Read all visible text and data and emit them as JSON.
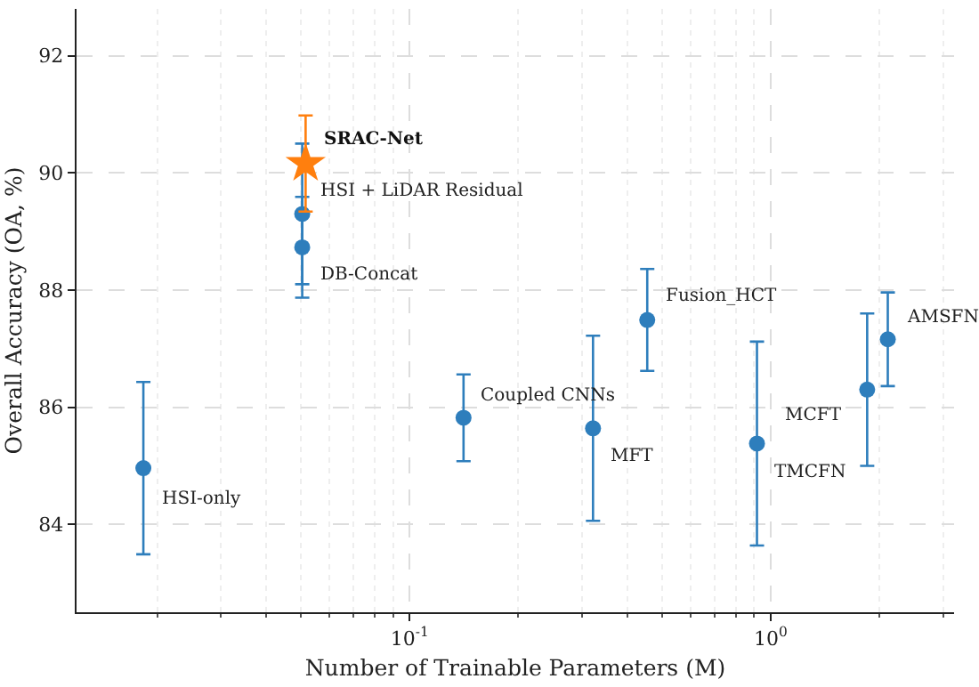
{
  "chart_data": {
    "type": "scatter",
    "xlabel": "Number of Trainable Parameters (M)",
    "ylabel": "Overall Accuracy (OA, %)",
    "log": "x",
    "grid": true,
    "xlim": [
      0.01195,
      3.22
    ],
    "ylim": [
      82.5,
      92.8
    ],
    "xticks": [
      {
        "value": 0.1,
        "label": "10$^{-1}$"
      },
      {
        "value": 1,
        "label": "10$^{0}$"
      }
    ],
    "yticks": [
      84,
      86,
      88,
      90,
      92
    ],
    "series": [
      {
        "color": "#2e7ebc",
        "marker": "circle",
        "x": [
          0.0183,
          0.0504,
          0.0504,
          0.141,
          0.322,
          0.455,
          0.916,
          1.85,
          2.11
        ],
        "values": [
          84.96,
          89.3,
          88.73,
          85.82,
          85.64,
          87.49,
          85.38,
          86.3,
          87.16
        ],
        "errors": [
          1.47,
          1.2,
          0.86,
          0.74,
          1.58,
          0.87,
          1.74,
          1.3,
          0.8
        ]
      },
      {
        "name": "SRAC-Net",
        "color": "#ff7f0e",
        "marker": "star",
        "x": [
          0.0515
        ],
        "values": [
          90.16
        ],
        "errors": [
          0.82
        ]
      }
    ],
    "annotations": [
      {
        "text": "HSI-only",
        "x": 0.0183,
        "y": 84.96
      },
      {
        "text": "HSI + LiDAR Residual",
        "x": 0.0504,
        "y": 89.3
      },
      {
        "text": "DB-Concat",
        "x": 0.0504,
        "y": 88.73
      },
      {
        "text": "Coupled CNNs",
        "x": 0.141,
        "y": 85.82
      },
      {
        "text": "MFT",
        "x": 0.322,
        "y": 85.64
      },
      {
        "text": "Fusion_HCT",
        "x": 0.455,
        "y": 87.49
      },
      {
        "text": "TMCFN",
        "x": 0.916,
        "y": 85.38
      },
      {
        "text": "MCFT",
        "x": 1.85,
        "y": 86.3
      },
      {
        "text": "AMSFN",
        "x": 2.11,
        "y": 87.16
      }
    ]
  }
}
